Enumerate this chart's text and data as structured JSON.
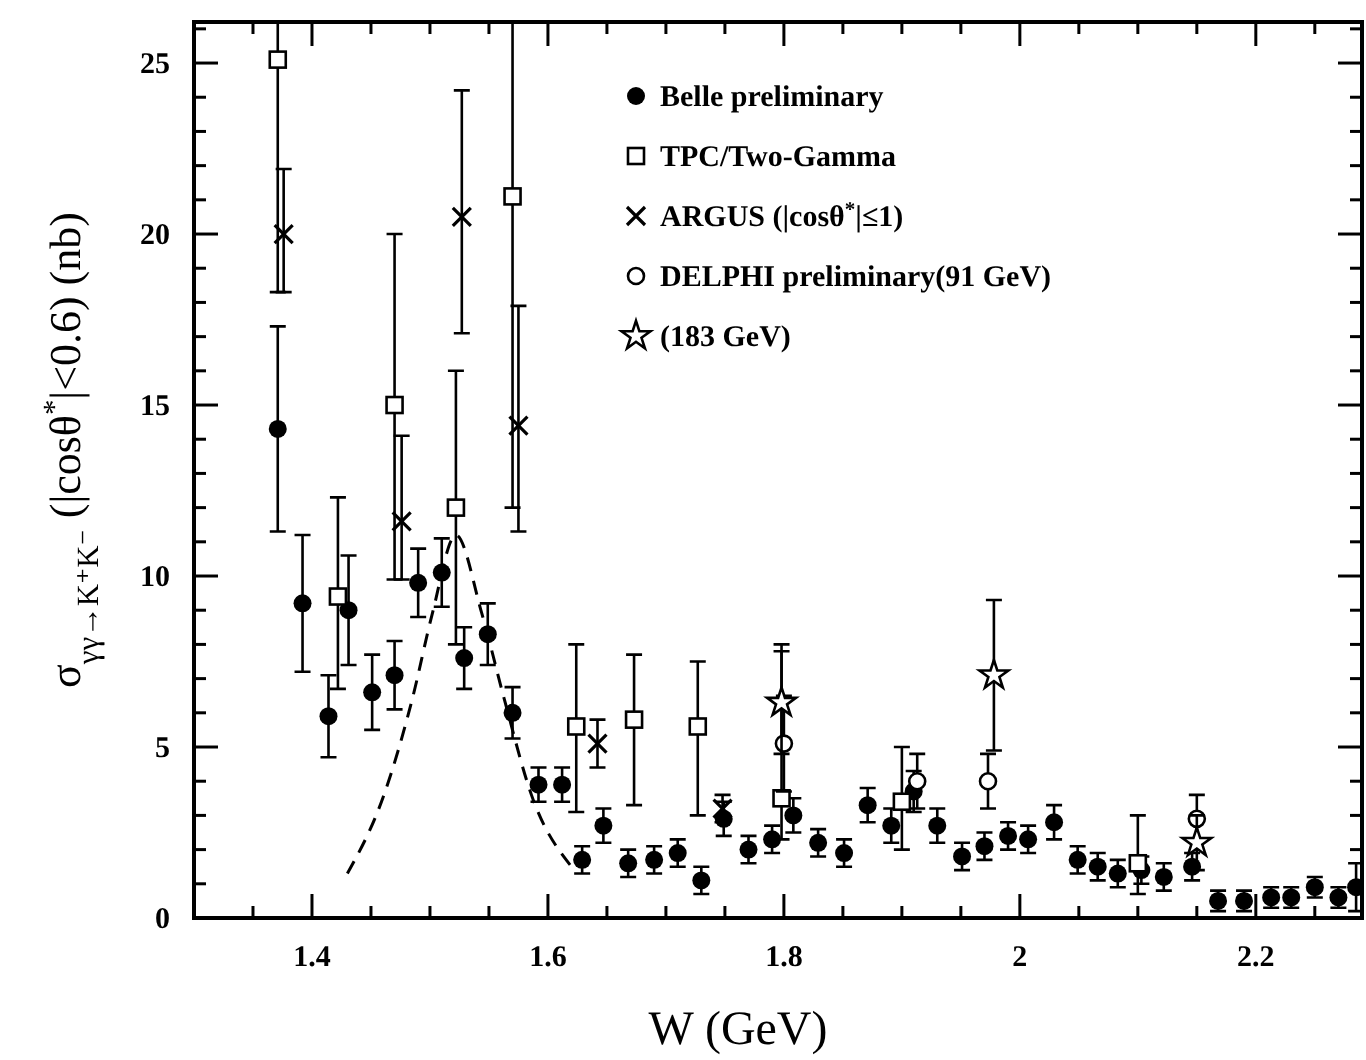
{
  "chart_data": {
    "type": "scatter",
    "xlabel": "W (GeV)",
    "ylabel": "σ$_{γγ→K⁺K⁻}$  (|cosθ$^{*}$|<0.6) (nb)",
    "xlim": [
      1.3,
      2.29
    ],
    "ylim": [
      0,
      26.2
    ],
    "xticks": [
      {
        "value": 1.35,
        "label": null
      },
      {
        "value": 1.4,
        "label": "1.4"
      },
      {
        "value": 1.45,
        "label": null
      },
      {
        "value": 1.5,
        "label": null
      },
      {
        "value": 1.55,
        "label": null
      },
      {
        "value": 1.6,
        "label": "1.6"
      },
      {
        "value": 1.65,
        "label": null
      },
      {
        "value": 1.7,
        "label": null
      },
      {
        "value": 1.75,
        "label": null
      },
      {
        "value": 1.8,
        "label": "1.8"
      },
      {
        "value": 1.85,
        "label": null
      },
      {
        "value": 1.9,
        "label": null
      },
      {
        "value": 1.95,
        "label": null
      },
      {
        "value": 2,
        "label": "2"
      },
      {
        "value": 2.05,
        "label": null
      },
      {
        "value": 2.1,
        "label": null
      },
      {
        "value": 2.15,
        "label": null
      },
      {
        "value": 2.2,
        "label": "2.2"
      },
      {
        "value": 2.25,
        "label": null
      }
    ],
    "yticks": [
      0,
      {
        "value": 1,
        "label": null
      },
      {
        "value": 2,
        "label": null
      },
      {
        "value": 3,
        "label": null
      },
      {
        "value": 4,
        "label": null
      },
      5,
      {
        "value": 6,
        "label": null
      },
      {
        "value": 7,
        "label": null
      },
      {
        "value": 8,
        "label": null
      },
      {
        "value": 9,
        "label": null
      },
      10,
      {
        "value": 11,
        "label": null
      },
      {
        "value": 12,
        "label": null
      },
      {
        "value": 13,
        "label": null
      },
      {
        "value": 14,
        "label": null
      },
      15,
      {
        "value": 16,
        "label": null
      },
      {
        "value": 17,
        "label": null
      },
      {
        "value": 18,
        "label": null
      },
      {
        "value": 19,
        "label": null
      },
      20,
      {
        "value": 21,
        "label": null
      },
      {
        "value": 22,
        "label": null
      },
      {
        "value": 23,
        "label": null
      },
      {
        "value": 24,
        "label": null
      },
      25,
      {
        "value": 26,
        "label": null
      }
    ],
    "grid": false,
    "legend": "top right",
    "series": [
      {
        "type": "line",
        "color": "#000000",
        "line_style": "dashed",
        "marker": "none",
        "x": [
          1.43,
          1.461,
          1.485,
          1.502,
          1.522,
          1.544,
          1.563,
          1.586,
          1.62
        ],
        "values": [
          1.3,
          3.6,
          6.4,
          8.9,
          11.2,
          8.9,
          6.4,
          3.6,
          1.5
        ]
      },
      {
        "name": "Belle preliminary",
        "color": "#000000",
        "marker": "circle",
        "x": [
          1.371,
          1.392,
          1.414,
          1.431,
          1.451,
          1.47,
          1.49,
          1.51,
          1.529,
          1.549,
          1.57,
          1.592,
          1.612,
          1.629,
          1.647,
          1.668,
          1.69,
          1.71,
          1.73,
          1.749,
          1.77,
          1.79,
          1.808,
          1.829,
          1.851,
          1.871,
          1.891,
          1.91,
          1.93,
          1.951,
          1.97,
          1.99,
          2.007,
          2.029,
          2.049,
          2.066,
          2.083,
          2.103,
          2.122,
          2.146,
          2.168,
          2.19,
          2.213,
          2.23,
          2.25,
          2.27,
          2.285
        ],
        "values": [
          14.3,
          9.2,
          5.9,
          9.0,
          6.6,
          7.1,
          9.8,
          10.1,
          7.6,
          8.3,
          6.0,
          3.9,
          3.9,
          1.7,
          2.7,
          1.6,
          1.7,
          1.9,
          1.1,
          2.9,
          2.0,
          2.3,
          3.0,
          2.2,
          1.9,
          3.3,
          2.7,
          3.7,
          2.7,
          1.8,
          2.1,
          2.4,
          2.3,
          2.8,
          1.7,
          1.5,
          1.3,
          1.4,
          1.2,
          1.5,
          0.5,
          0.5,
          0.6,
          0.6,
          0.9,
          0.6,
          0.9
        ],
        "errors": [
          3,
          2,
          1.2,
          1.6,
          1.1,
          1,
          1,
          1,
          0.9,
          0.9,
          0.75,
          0.5,
          0.5,
          0.4,
          0.5,
          0.4,
          0.4,
          0.4,
          0.4,
          0.5,
          0.4,
          0.4,
          0.5,
          0.4,
          0.4,
          0.5,
          0.5,
          0.6,
          0.5,
          0.4,
          0.4,
          0.4,
          0.4,
          0.5,
          0.4,
          0.4,
          0.4,
          0.4,
          0.4,
          0.4,
          0.3,
          0.3,
          0.3,
          0.3,
          0.3,
          0.3,
          0.7
        ]
      },
      {
        "name": "TPC/Two-Gamma",
        "color": "#000000",
        "marker": "square",
        "x": [
          1.371,
          1.422,
          1.47,
          1.522,
          1.57,
          1.624,
          1.673,
          1.727,
          1.798,
          1.9,
          2.1
        ],
        "values": [
          25.1,
          9.4,
          15.0,
          12.0,
          21.1,
          5.6,
          5.8,
          5.6,
          3.5,
          3.4,
          1.6
        ],
        "errors": [
          [
            18.3,
            26.2
          ],
          [
            6.7,
            12.3
          ],
          [
            9.9,
            20.0
          ],
          [
            8.0,
            16.0
          ],
          [
            12.0,
            26.2
          ],
          [
            3.1,
            8.0
          ],
          [
            3.3,
            7.7
          ],
          [
            3.0,
            7.5
          ],
          [
            2.3,
            8.0
          ],
          [
            2.0,
            5.0
          ],
          [
            0.7,
            3.0
          ]
        ]
      },
      {
        "name": "ARGUS (|cosθ$^{*}$|≤1)",
        "color": "#000000",
        "marker": "cross",
        "x": [
          1.376,
          1.476,
          1.527,
          1.575,
          1.642,
          1.748
        ],
        "values": [
          20.0,
          11.6,
          20.5,
          14.4,
          5.1,
          3.2
        ],
        "errors": [
          [
            18.3,
            21.9
          ],
          [
            9.9,
            14.1
          ],
          [
            17.1,
            24.2
          ],
          [
            11.3,
            17.9
          ],
          0.7,
          0.4
        ]
      },
      {
        "name": "DELPHI preliminary(91 GeV)",
        "color": "#000000",
        "marker": "circle-open",
        "x": [
          1.8,
          1.913,
          1.973,
          2.15
        ],
        "values": [
          5.1,
          4.0,
          4.0,
          2.9
        ],
        "errors": [
          1.4,
          0.8,
          0.8,
          0.7
        ]
      },
      {
        "name": "(183 GeV)",
        "color": "#000000",
        "marker": "star",
        "x": [
          1.798,
          1.978,
          2.15
        ],
        "values": [
          6.3,
          7.1,
          2.2
        ],
        "errors": [
          1.5,
          2.2,
          0.8
        ]
      }
    ]
  }
}
